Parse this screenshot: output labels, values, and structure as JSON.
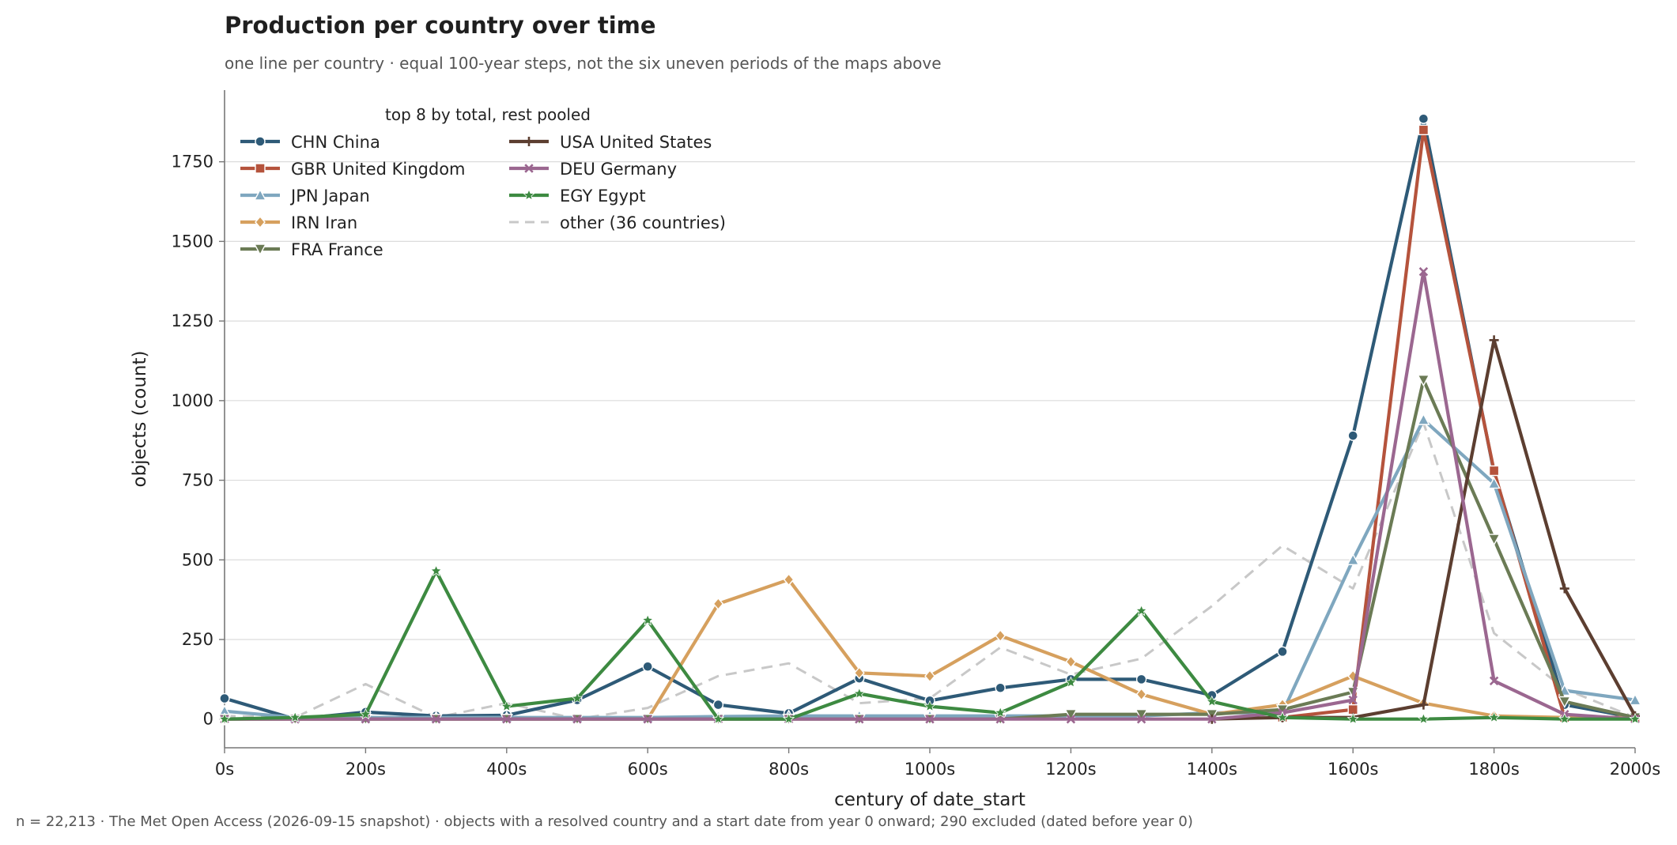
{
  "chart_data": {
    "type": "line",
    "title": "Production per country over time",
    "subtitle": "one line per country · equal 100-year steps, not the six uneven periods of the maps above",
    "xlabel": "century of date_start",
    "ylabel": "objects (count)",
    "x": [
      0,
      100,
      200,
      300,
      400,
      500,
      600,
      700,
      800,
      900,
      1000,
      1100,
      1200,
      1300,
      1400,
      1500,
      1600,
      1700,
      1800,
      1900,
      2000
    ],
    "xticks": [
      "0s",
      "200s",
      "400s",
      "600s",
      "800s",
      "1000s",
      "1200s",
      "1400s",
      "1600s",
      "1800s",
      "2000s"
    ],
    "xtick_values": [
      0,
      200,
      400,
      600,
      800,
      1000,
      1200,
      1400,
      1600,
      1800,
      2000
    ],
    "yticks": [
      0,
      250,
      500,
      750,
      1000,
      1250,
      1500,
      1750
    ],
    "xlim": [
      0,
      2000
    ],
    "ylim": [
      -90,
      1975
    ],
    "grid": "horizontal",
    "legend": {
      "title": "top 8 by total, rest pooled",
      "placement": "top-left"
    },
    "series": [
      {
        "name": "CHN China",
        "color": "#2e5a77",
        "marker": "circle",
        "dashed": false,
        "values": [
          65,
          0,
          22,
          10,
          12,
          60,
          165,
          45,
          18,
          128,
          58,
          98,
          125,
          125,
          75,
          212,
          890,
          1885,
          775,
          45,
          5
        ]
      },
      {
        "name": "GBR United Kingdom",
        "color": "#b5533c",
        "marker": "square",
        "dashed": false,
        "values": [
          null,
          null,
          null,
          null,
          null,
          null,
          null,
          null,
          null,
          null,
          null,
          null,
          null,
          null,
          null,
          5,
          30,
          1850,
          780,
          5,
          5
        ]
      },
      {
        "name": "JPN Japan",
        "color": "#7fa7bf",
        "marker": "triangle-up",
        "dashed": false,
        "values": [
          25,
          5,
          5,
          5,
          5,
          5,
          5,
          8,
          10,
          10,
          10,
          10,
          10,
          10,
          20,
          20,
          500,
          940,
          740,
          90,
          60
        ]
      },
      {
        "name": "IRN Iran",
        "color": "#d6a05e",
        "marker": "diamond",
        "dashed": false,
        "values": [
          0,
          0,
          0,
          0,
          0,
          0,
          0,
          362,
          438,
          145,
          135,
          262,
          180,
          78,
          15,
          45,
          135,
          50,
          10,
          5,
          5
        ]
      },
      {
        "name": "FRA France",
        "color": "#6b7b55",
        "marker": "triangle-down",
        "dashed": false,
        "values": [
          0,
          0,
          0,
          0,
          0,
          0,
          0,
          0,
          0,
          0,
          0,
          0,
          15,
          15,
          15,
          30,
          85,
          1065,
          565,
          55,
          5
        ]
      },
      {
        "name": "USA United States",
        "color": "#5c3e30",
        "marker": "plus",
        "dashed": false,
        "values": [
          null,
          null,
          null,
          null,
          null,
          null,
          null,
          null,
          null,
          null,
          null,
          null,
          null,
          null,
          0,
          5,
          5,
          45,
          1190,
          410,
          10
        ]
      },
      {
        "name": "DEU Germany",
        "color": "#9b6790",
        "marker": "x",
        "dashed": false,
        "values": [
          0,
          0,
          0,
          0,
          0,
          0,
          0,
          0,
          0,
          0,
          0,
          0,
          0,
          0,
          0,
          20,
          60,
          1405,
          120,
          15,
          0
        ]
      },
      {
        "name": "EGY Egypt",
        "color": "#3d8a41",
        "marker": "star",
        "dashed": false,
        "values": [
          0,
          5,
          15,
          465,
          40,
          65,
          310,
          0,
          0,
          80,
          40,
          20,
          115,
          340,
          55,
          5,
          0,
          0,
          5,
          0,
          0
        ]
      },
      {
        "name": "other (36 countries)",
        "color": "#c8c8c8",
        "marker": "none",
        "dashed": true,
        "values": [
          10,
          5,
          110,
          5,
          50,
          0,
          35,
          135,
          175,
          50,
          65,
          225,
          140,
          190,
          355,
          545,
          410,
          930,
          270,
          95,
          5
        ]
      }
    ],
    "footer": "n = 22,213 · The Met Open Access (2026-09-15 snapshot) · objects with a resolved country and a start date from year 0 onward; 290 excluded (dated before year 0)"
  }
}
